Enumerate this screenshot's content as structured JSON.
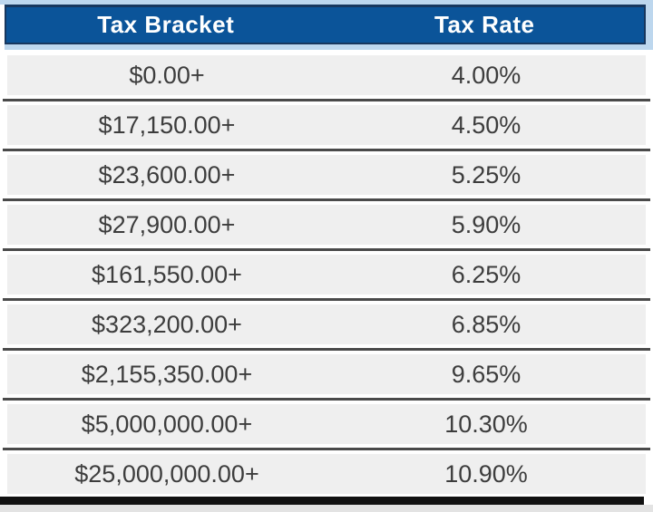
{
  "chart_data": {
    "type": "table",
    "columns": [
      "Tax Bracket",
      "Tax Rate"
    ],
    "rows": [
      [
        "$0.00+",
        "4.00%"
      ],
      [
        "$17,150.00+",
        "4.50%"
      ],
      [
        "$23,600.00+",
        "5.25%"
      ],
      [
        "$27,900.00+",
        "5.90%"
      ],
      [
        "$161,550.00+",
        "6.25%"
      ],
      [
        "$323,200.00+",
        "6.85%"
      ],
      [
        "$2,155,350.00+",
        "9.65%"
      ],
      [
        "$5,000,000.00+",
        "10.30%"
      ],
      [
        "$25,000,000.00+",
        "10.90%"
      ]
    ]
  },
  "colors": {
    "header_bg": "#0b5499",
    "header_text": "#ffffff",
    "header_border": "#17375e",
    "accent_strip": "#bdd7ee",
    "row_bg": "#efefef",
    "separator": "#4a4a4a",
    "row_text": "#3d3d3d",
    "bottom_bar": "#111111",
    "page_bottom": "#e3e3e3"
  }
}
